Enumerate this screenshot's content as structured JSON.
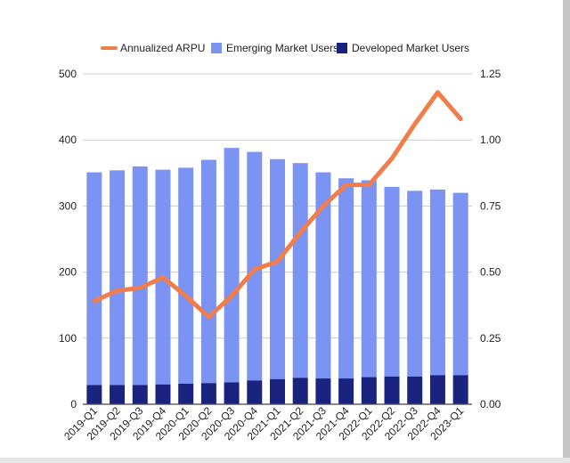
{
  "chart_data": {
    "type": "bar",
    "stacked": true,
    "categories": [
      "2019-Q1",
      "2019-Q2",
      "2019-Q3",
      "2019-Q4",
      "2020-Q1",
      "2020-Q2",
      "2020-Q3",
      "2020-Q4",
      "2021-Q1",
      "2021-Q2",
      "2021-Q3",
      "2021-Q4",
      "2022-Q1",
      "2022-Q2",
      "2022-Q3",
      "2022-Q4",
      "2023-Q1"
    ],
    "series": [
      {
        "name": "Developed Market Users",
        "kind": "bar",
        "axis": "left",
        "color": "#1a237e",
        "values": [
          29,
          29,
          29,
          30,
          31,
          32,
          33,
          36,
          38,
          40,
          39,
          39,
          41,
          42,
          42,
          44,
          44
        ]
      },
      {
        "name": "Emerging Market Users",
        "kind": "bar",
        "axis": "left",
        "color": "#7b93f2",
        "values": [
          322,
          325,
          331,
          325,
          327,
          338,
          355,
          346,
          333,
          325,
          312,
          303,
          298,
          287,
          281,
          281,
          276
        ]
      },
      {
        "name": "Annualized ARPU",
        "kind": "line",
        "axis": "right",
        "color": "#f07d4a",
        "values": [
          0.39,
          0.43,
          0.44,
          0.48,
          0.41,
          0.33,
          0.41,
          0.51,
          0.54,
          0.65,
          0.75,
          0.83,
          0.83,
          0.93,
          1.06,
          1.18,
          1.08
        ]
      }
    ],
    "legend": {
      "position": "top-center",
      "order": [
        "Annualized ARPU",
        "Emerging Market Users",
        "Developed Market Users"
      ]
    },
    "y_left": {
      "min": 0,
      "max": 500,
      "ticks": [
        "0",
        "100",
        "200",
        "300",
        "400",
        "500"
      ]
    },
    "y_right": {
      "min": 0,
      "max": 1.25,
      "ticks": [
        "0.00",
        "0.25",
        "0.50",
        "0.75",
        "1.00",
        "1.25"
      ]
    },
    "grid": true,
    "colors": {
      "grid": "#cccccc",
      "axis": "#444444",
      "background": "#ffffff"
    }
  }
}
